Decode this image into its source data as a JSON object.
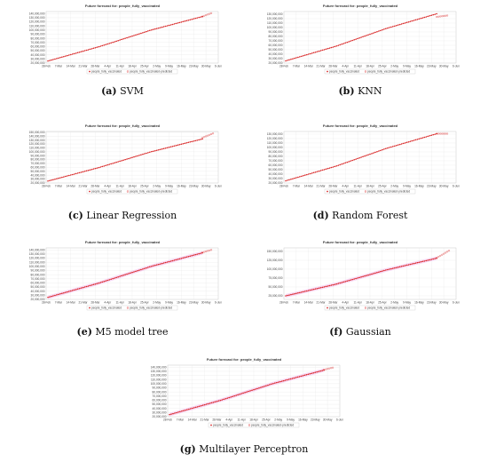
{
  "colors": {
    "actual": "#d92a2a",
    "predicted": "#ff8888",
    "band": "#f3b9ec",
    "grid": "#e6e6e6",
    "frame": "#bbbbbb"
  },
  "chart_data": [
    {
      "type": "line",
      "title": "Future forecast for: people_fully_vaccinated",
      "caption_letter": "(a)",
      "caption_name": "SVM",
      "x_ticks": [
        "28-Feb",
        "7-Mar",
        "14-Mar",
        "21-Mar",
        "28-Mar",
        "4-Apr",
        "11-Apr",
        "18-Apr",
        "25-Apr",
        "2-May",
        "9-May",
        "16-May",
        "23-May",
        "30-May",
        "6-Jun"
      ],
      "y_ticks": [
        "20,000,000",
        "30,000,000",
        "40,000,000",
        "50,000,000",
        "60,000,000",
        "70,000,000",
        "80,000,000",
        "90,000,000",
        "100,000,000",
        "110,000,000",
        "120,000,000",
        "130,000,000",
        "140,000,000"
      ],
      "ylim": [
        20000000,
        145000000
      ],
      "x_range": [
        "2021-02-28",
        "2021-06-06"
      ],
      "actual": {
        "start": "2021-03-01",
        "end": "2021-05-28",
        "values": [
          25000000,
          60000000,
          100000000,
          133000000
        ]
      },
      "predicted": {
        "start": "2021-05-28",
        "end": "2021-06-02",
        "values": [
          133000000,
          141000000
        ]
      },
      "band": false,
      "legend": [
        "people_fully_vaccinated",
        "people_fully_vaccinated-predicted"
      ]
    },
    {
      "type": "line",
      "title": "Future forecast for: people_fully_vaccinated",
      "caption_letter": "(b)",
      "caption_name": "KNN",
      "x_ticks": [
        "28-Feb",
        "7-Mar",
        "14-Mar",
        "21-Mar",
        "28-Mar",
        "4-Apr",
        "11-Apr",
        "18-Apr",
        "25-Apr",
        "2-May",
        "9-May",
        "16-May",
        "23-May",
        "30-May",
        "6-Jun"
      ],
      "y_ticks": [
        "20,000,000",
        "30,000,000",
        "40,000,000",
        "50,000,000",
        "60,000,000",
        "70,000,000",
        "80,000,000",
        "90,000,000",
        "100,000,000",
        "110,000,000",
        "120,000,000",
        "130,000,000"
      ],
      "ylim": [
        20000000,
        136000000
      ],
      "x_range": [
        "2021-02-28",
        "2021-06-06"
      ],
      "actual": {
        "start": "2021-03-01",
        "end": "2021-05-26",
        "values": [
          25000000,
          58000000,
          98000000,
          131000000
        ]
      },
      "predicted": {
        "start": "2021-05-26",
        "end": "2021-06-01",
        "values": [
          124000000,
          127000000
        ]
      },
      "band": false,
      "legend": [
        "people_fully_vaccinated",
        "people_fully_vaccinated-predicted"
      ]
    },
    {
      "type": "line",
      "title": "Future forecast for: people_fully_vaccinated",
      "caption_letter": "(c)",
      "caption_name": "Linear Regression",
      "x_ticks": [
        "28-Feb",
        "7-Mar",
        "14-Mar",
        "21-Mar",
        "28-Mar",
        "4-Apr",
        "11-Apr",
        "18-Apr",
        "25-Apr",
        "2-May",
        "9-May",
        "16-May",
        "23-May",
        "30-May",
        "6-Jun"
      ],
      "y_ticks": [
        "20,000,000",
        "30,000,000",
        "40,000,000",
        "50,000,000",
        "60,000,000",
        "70,000,000",
        "80,000,000",
        "90,000,000",
        "100,000,000",
        "110,000,000",
        "120,000,000",
        "130,000,000",
        "140,000,000",
        "150,000,000"
      ],
      "ylim": [
        20000000,
        152000000
      ],
      "x_range": [
        "2021-02-28",
        "2021-06-06"
      ],
      "actual": {
        "start": "2021-03-01",
        "end": "2021-05-28",
        "values": [
          25000000,
          60000000,
          100000000,
          133000000
        ]
      },
      "predicted": {
        "start": "2021-05-28",
        "end": "2021-06-03",
        "values": [
          136000000,
          147000000
        ]
      },
      "band": false,
      "legend": [
        "people_fully_vaccinated",
        "people_fully_vaccinated-predicted"
      ]
    },
    {
      "type": "line",
      "title": "Future forecast for: people_fully_vaccinated",
      "caption_letter": "(d)",
      "caption_name": "Random Forest",
      "x_ticks": [
        "28-Feb",
        "7-Mar",
        "14-Mar",
        "21-Mar",
        "28-Mar",
        "4-Apr",
        "11-Apr",
        "18-Apr",
        "25-Apr",
        "2-May",
        "9-May",
        "16-May",
        "23-May",
        "30-May",
        "6-Jun"
      ],
      "y_ticks": [
        "20,000,000",
        "30,000,000",
        "40,000,000",
        "50,000,000",
        "60,000,000",
        "70,000,000",
        "80,000,000",
        "90,000,000",
        "100,000,000",
        "110,000,000",
        "120,000,000",
        "130,000,000"
      ],
      "ylim": [
        20000000,
        136000000
      ],
      "x_range": [
        "2021-02-28",
        "2021-06-06"
      ],
      "actual": {
        "start": "2021-03-01",
        "end": "2021-05-26",
        "values": [
          25000000,
          58000000,
          98000000,
          131000000
        ]
      },
      "predicted": {
        "start": "2021-05-26",
        "end": "2021-06-01",
        "values": [
          131000000,
          131000000
        ]
      },
      "band": false,
      "legend": [
        "people_fully_vaccinated",
        "people_fully_vaccinated-predicted"
      ]
    },
    {
      "type": "line",
      "title": "Future forecast for: people_fully_vaccinated",
      "caption_letter": "(e)",
      "caption_name": "M5 model tree",
      "x_ticks": [
        "28-Feb",
        "7-Mar",
        "14-Mar",
        "21-Mar",
        "28-Mar",
        "4-Apr",
        "11-Apr",
        "18-Apr",
        "25-Apr",
        "2-May",
        "9-May",
        "16-May",
        "23-May",
        "30-May",
        "6-Jun"
      ],
      "y_ticks": [
        "20,000,000",
        "30,000,000",
        "40,000,000",
        "50,000,000",
        "60,000,000",
        "70,000,000",
        "80,000,000",
        "90,000,000",
        "100,000,000",
        "110,000,000",
        "120,000,000",
        "130,000,000",
        "140,000,000"
      ],
      "ylim": [
        20000000,
        145000000
      ],
      "x_range": [
        "2021-02-28",
        "2021-06-06"
      ],
      "actual": {
        "start": "2021-03-01",
        "end": "2021-05-28",
        "values": [
          25000000,
          60000000,
          100000000,
          133000000
        ]
      },
      "predicted": {
        "start": "2021-05-28",
        "end": "2021-06-02",
        "values": [
          134000000,
          140000000
        ]
      },
      "band": true,
      "legend": [
        "people_fully_vaccinated",
        "people_fully_vaccinated-predicted"
      ]
    },
    {
      "type": "line",
      "title": "Future forecast for: people_fully_vaccinated",
      "caption_letter": "(f)",
      "caption_name": "Gaussian",
      "x_ticks": [
        "28-Feb",
        "7-Mar",
        "14-Mar",
        "21-Mar",
        "28-Mar",
        "4-Apr",
        "11-Apr",
        "18-Apr",
        "25-Apr",
        "2-May",
        "9-May",
        "16-May",
        "23-May",
        "30-May",
        "6-Jun"
      ],
      "y_ticks": [
        "25,000,000",
        "50,000,000",
        "75,000,000",
        "100,000,000",
        "125,000,000",
        "150,000,000"
      ],
      "ylim": [
        15000000,
        160000000
      ],
      "x_range": [
        "2021-02-28",
        "2021-06-06"
      ],
      "actual": {
        "start": "2021-03-01",
        "end": "2021-05-26",
        "values": [
          25000000,
          58000000,
          98000000,
          131000000
        ]
      },
      "predicted": {
        "start": "2021-05-26",
        "end": "2021-06-02",
        "values": [
          132000000,
          152000000
        ]
      },
      "band": true,
      "legend": [
        "people_fully_vaccinated",
        "people_fully_vaccinated-predicted"
      ]
    },
    {
      "type": "line",
      "title": "Future forecast for: people_fully_vaccinated",
      "caption_letter": "(g)",
      "caption_name": "Multilayer Perceptron",
      "x_ticks": [
        "28-Feb",
        "7-Mar",
        "14-Mar",
        "21-Mar",
        "28-Mar",
        "4-Apr",
        "11-Apr",
        "18-Apr",
        "25-Apr",
        "2-May",
        "9-May",
        "16-May",
        "23-May",
        "30-May",
        "6-Jun"
      ],
      "y_ticks": [
        "20,000,000",
        "30,000,000",
        "40,000,000",
        "50,000,000",
        "60,000,000",
        "70,000,000",
        "80,000,000",
        "90,000,000",
        "100,000,000",
        "110,000,000",
        "120,000,000",
        "130,000,000",
        "140,000,000"
      ],
      "ylim": [
        20000000,
        145000000
      ],
      "x_range": [
        "2021-02-28",
        "2021-06-06"
      ],
      "actual": {
        "start": "2021-03-01",
        "end": "2021-05-28",
        "values": [
          25000000,
          60000000,
          100000000,
          133000000
        ]
      },
      "predicted": {
        "start": "2021-05-28",
        "end": "2021-06-02",
        "values": [
          134000000,
          139000000
        ]
      },
      "band": true,
      "legend": [
        "people_fully_vaccinated",
        "people_fully_vaccinated-predicted"
      ]
    }
  ]
}
